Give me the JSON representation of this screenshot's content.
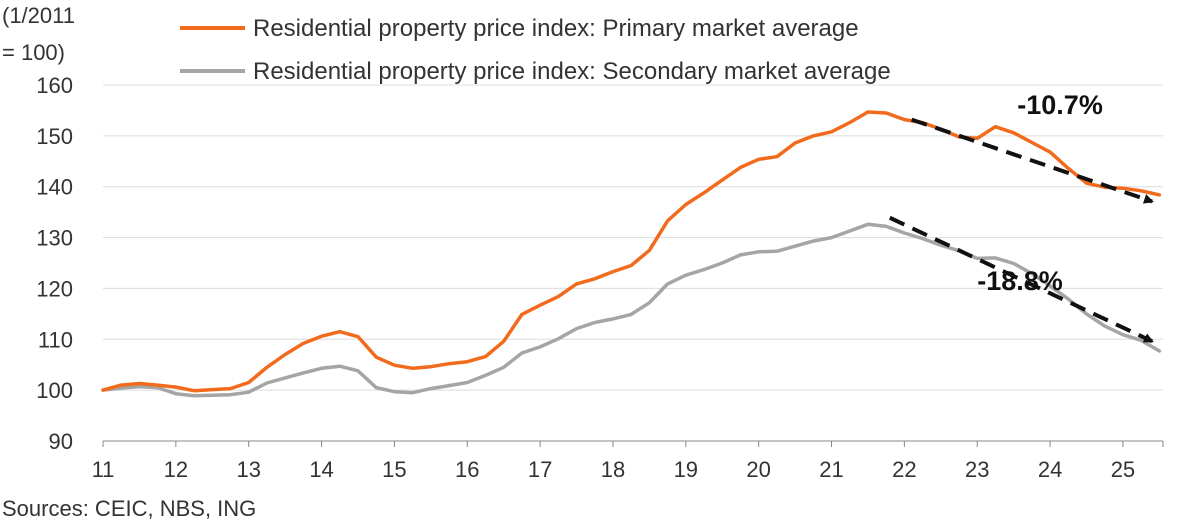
{
  "chart_data": {
    "type": "line",
    "y_unit_label_line1": "(1/2011",
    "y_unit_label_line2": "= 100)",
    "xlim": [
      2011,
      2025.55
    ],
    "ylim": [
      90,
      160
    ],
    "yticks": [
      90,
      100,
      110,
      120,
      130,
      140,
      150,
      160
    ],
    "xtick_values": [
      2011,
      2012,
      2013,
      2014,
      2015,
      2016,
      2017,
      2018,
      2019,
      2020,
      2021,
      2022,
      2023,
      2024,
      2025
    ],
    "xtick_labels": [
      "11",
      "12",
      "13",
      "14",
      "15",
      "16",
      "17",
      "18",
      "19",
      "20",
      "21",
      "22",
      "23",
      "24",
      "25"
    ],
    "grid": true,
    "legend_position": "top",
    "series": [
      {
        "name": "Residential property price index: Primary market average",
        "color": "#f26b1d",
        "x": [
          2011.0,
          2011.25,
          2011.5,
          2011.75,
          2012.0,
          2012.25,
          2012.5,
          2012.75,
          2013.0,
          2013.25,
          2013.5,
          2013.75,
          2014.0,
          2014.25,
          2014.5,
          2014.75,
          2015.0,
          2015.25,
          2015.5,
          2015.75,
          2016.0,
          2016.25,
          2016.5,
          2016.75,
          2017.0,
          2017.25,
          2017.5,
          2017.75,
          2018.0,
          2018.25,
          2018.5,
          2018.75,
          2019.0,
          2019.25,
          2019.5,
          2019.75,
          2020.0,
          2020.25,
          2020.5,
          2020.75,
          2021.0,
          2021.25,
          2021.5,
          2021.75,
          2022.0,
          2022.25,
          2022.5,
          2022.75,
          2023.0,
          2023.25,
          2023.5,
          2023.75,
          2024.0,
          2024.25,
          2024.5,
          2024.75,
          2025.0,
          2025.25,
          2025.5
        ],
        "values": [
          100.0,
          101.0,
          101.3,
          101.0,
          100.6,
          99.9,
          100.1,
          100.3,
          101.5,
          104.5,
          107.0,
          109.2,
          110.6,
          111.5,
          110.5,
          106.5,
          104.9,
          104.3,
          104.6,
          105.2,
          105.6,
          106.6,
          109.6,
          114.9,
          116.7,
          118.4,
          120.9,
          121.9,
          123.3,
          124.5,
          127.5,
          133.3,
          136.5,
          138.8,
          141.3,
          143.8,
          145.4,
          145.9,
          148.6,
          150.0,
          150.8,
          152.6,
          154.7,
          154.5,
          153.2,
          152.6,
          151.3,
          149.8,
          149.5,
          151.8,
          150.6,
          148.7,
          146.8,
          143.6,
          140.7,
          139.9,
          139.7,
          139.2,
          138.4
        ]
      },
      {
        "name": "Residential property price index: Secondary market average",
        "color": "#a5a5a5",
        "x": [
          2011.0,
          2011.25,
          2011.5,
          2011.75,
          2012.0,
          2012.25,
          2012.5,
          2012.75,
          2013.0,
          2013.25,
          2013.5,
          2013.75,
          2014.0,
          2014.25,
          2014.5,
          2014.75,
          2015.0,
          2015.25,
          2015.5,
          2015.75,
          2016.0,
          2016.25,
          2016.5,
          2016.75,
          2017.0,
          2017.25,
          2017.5,
          2017.75,
          2018.0,
          2018.25,
          2018.5,
          2018.75,
          2019.0,
          2019.25,
          2019.5,
          2019.75,
          2020.0,
          2020.25,
          2020.5,
          2020.75,
          2021.0,
          2021.25,
          2021.5,
          2021.75,
          2022.0,
          2022.25,
          2022.5,
          2022.75,
          2023.0,
          2023.25,
          2023.5,
          2023.75,
          2024.0,
          2024.25,
          2024.5,
          2024.75,
          2025.0,
          2025.25,
          2025.5
        ],
        "values": [
          100.0,
          100.4,
          100.7,
          100.5,
          99.3,
          98.9,
          99.0,
          99.1,
          99.6,
          101.4,
          102.4,
          103.4,
          104.3,
          104.7,
          103.8,
          100.5,
          99.7,
          99.5,
          100.3,
          100.9,
          101.5,
          102.9,
          104.5,
          107.3,
          108.5,
          110.1,
          112.1,
          113.3,
          114.0,
          114.9,
          117.2,
          120.9,
          122.6,
          123.7,
          125.0,
          126.6,
          127.2,
          127.3,
          128.3,
          129.3,
          130.0,
          131.3,
          132.6,
          132.2,
          130.9,
          129.8,
          128.5,
          127.4,
          125.9,
          126.0,
          124.9,
          122.9,
          120.5,
          117.9,
          115.0,
          112.6,
          110.9,
          109.8,
          107.7
        ]
      }
    ],
    "annotations": [
      {
        "text": "-10.7%",
        "x": 2023.55,
        "y": 154.3
      },
      {
        "text": "-18.8%",
        "x": 2023.0,
        "y": 119.7
      }
    ],
    "arrows": [
      {
        "from": [
          2022.1,
          153.2
        ],
        "to": [
          2025.4,
          137.1
        ]
      },
      {
        "from": [
          2021.8,
          133.9
        ],
        "to": [
          2025.4,
          109.6
        ]
      }
    ]
  },
  "source": "Sources: CEIC, NBS, ING"
}
